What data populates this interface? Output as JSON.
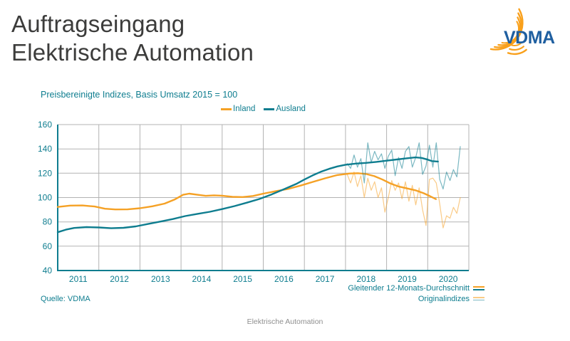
{
  "header": {
    "title_line1": "Auftragseingang",
    "title_line2": "Elektrische Automation",
    "logo_text": "VDMA"
  },
  "colors": {
    "teal": "#0E7D8F",
    "orange": "#F5A125",
    "grid": "#B3B3B3",
    "title_gray": "#3C3C3B",
    "footer_gray": "#8F8F8F",
    "logo_blue": "#1F5FA0",
    "logo_orange": "#F9A01B"
  },
  "chart": {
    "subtitle": "Preisbereinigte Indizes, Basis Umsatz 2015 = 100",
    "source": "Quelle: VDMA",
    "footer": "Elektrische Automation",
    "legend_top": [
      {
        "label": "Inland"
      },
      {
        "label": "Ausland"
      }
    ],
    "legend_bottom": [
      {
        "label": "Gleitender 12-Monats-Durchschnitt",
        "style": "thick"
      },
      {
        "label": "Originalindizes",
        "style": "thin"
      }
    ]
  },
  "chart_data": {
    "type": "line",
    "title": "Preisbereinigte Indizes, Basis Umsatz 2015 = 100",
    "xlabel": "",
    "ylabel": "",
    "x_range": [
      2011,
      2021
    ],
    "y_range": [
      40,
      160
    ],
    "y_ticks": [
      40,
      60,
      80,
      100,
      120,
      140,
      160
    ],
    "x_tick_labels": [
      "2011",
      "2012",
      "2013",
      "2014",
      "2015",
      "2016",
      "2017",
      "2018",
      "2019",
      "2020"
    ],
    "grid": true,
    "legend_position": "top",
    "series": [
      {
        "id": "inland-ma",
        "name": "Inland (gleitender 12-Monats-Durchschnitt)",
        "color": "#F5A125",
        "width": 2.4,
        "opacity": 1,
        "points": [
          [
            2011.0,
            92.3
          ],
          [
            2011.3,
            93.4
          ],
          [
            2011.6,
            93.5
          ],
          [
            2011.9,
            92.6
          ],
          [
            2012.15,
            90.8
          ],
          [
            2012.4,
            90.2
          ],
          [
            2012.7,
            90.3
          ],
          [
            2013.0,
            91.2
          ],
          [
            2013.3,
            92.8
          ],
          [
            2013.6,
            95.0
          ],
          [
            2013.85,
            98.5
          ],
          [
            2014.05,
            102.3
          ],
          [
            2014.2,
            103.2
          ],
          [
            2014.4,
            102.3
          ],
          [
            2014.6,
            101.4
          ],
          [
            2014.8,
            101.8
          ],
          [
            2015.0,
            101.5
          ],
          [
            2015.25,
            100.6
          ],
          [
            2015.5,
            100.4
          ],
          [
            2015.75,
            101.3
          ],
          [
            2016.0,
            103.2
          ],
          [
            2016.3,
            105.2
          ],
          [
            2016.6,
            107.0
          ],
          [
            2016.9,
            109.8
          ],
          [
            2017.2,
            112.8
          ],
          [
            2017.5,
            115.8
          ],
          [
            2017.8,
            118.5
          ],
          [
            2018.1,
            119.8
          ],
          [
            2018.3,
            120.0
          ],
          [
            2018.5,
            119.4
          ],
          [
            2018.7,
            117.6
          ],
          [
            2018.9,
            114.8
          ],
          [
            2019.1,
            111.5
          ],
          [
            2019.3,
            109.0
          ],
          [
            2019.5,
            107.5
          ],
          [
            2019.7,
            106.0
          ],
          [
            2019.9,
            103.6
          ],
          [
            2020.05,
            101.2
          ],
          [
            2020.2,
            98.7
          ]
        ]
      },
      {
        "id": "ausland-ma",
        "name": "Ausland (gleitender 12-Monats-Durchschnitt)",
        "color": "#0E7D8F",
        "width": 2.4,
        "opacity": 1,
        "points": [
          [
            2011.0,
            71.5
          ],
          [
            2011.2,
            73.6
          ],
          [
            2011.4,
            75.0
          ],
          [
            2011.7,
            75.7
          ],
          [
            2012.0,
            75.4
          ],
          [
            2012.3,
            74.8
          ],
          [
            2012.6,
            75.1
          ],
          [
            2012.9,
            76.3
          ],
          [
            2013.2,
            78.3
          ],
          [
            2013.5,
            80.3
          ],
          [
            2013.8,
            82.3
          ],
          [
            2014.1,
            84.8
          ],
          [
            2014.4,
            86.6
          ],
          [
            2014.7,
            88.3
          ],
          [
            2015.0,
            90.5
          ],
          [
            2015.3,
            93.0
          ],
          [
            2015.6,
            95.8
          ],
          [
            2015.9,
            98.8
          ],
          [
            2016.2,
            102.5
          ],
          [
            2016.5,
            106.8
          ],
          [
            2016.8,
            111.2
          ],
          [
            2017.0,
            114.8
          ],
          [
            2017.2,
            118.2
          ],
          [
            2017.4,
            121.2
          ],
          [
            2017.6,
            123.6
          ],
          [
            2017.8,
            125.6
          ],
          [
            2018.0,
            127.0
          ],
          [
            2018.25,
            127.9
          ],
          [
            2018.5,
            128.5
          ],
          [
            2018.75,
            129.3
          ],
          [
            2019.0,
            130.3
          ],
          [
            2019.25,
            131.3
          ],
          [
            2019.5,
            132.3
          ],
          [
            2019.7,
            133.0
          ],
          [
            2019.85,
            132.6
          ],
          [
            2020.0,
            131.2
          ],
          [
            2020.1,
            130.0
          ],
          [
            2020.25,
            129.6
          ]
        ]
      },
      {
        "id": "inland-original",
        "name": "Inland (Originalindizes, monatlich ab Jan 2018)",
        "color": "#F5A125",
        "width": 1.2,
        "opacity": 0.55,
        "start_x": 2018.0417,
        "step_x": 0.08333,
        "values": [
          119,
          112,
          121,
          109,
          118,
          100,
          116,
          106,
          113,
          100,
          108,
          88,
          100,
          114,
          106,
          112,
          99,
          113,
          97,
          110,
          94,
          108,
          90,
          77,
          115,
          116,
          112,
          95,
          75,
          85,
          83,
          92,
          87,
          100
        ]
      },
      {
        "id": "ausland-original",
        "name": "Ausland (Originalindizes, monatlich ab Jan 2018)",
        "color": "#0E7D8F",
        "width": 1.2,
        "opacity": 0.55,
        "start_x": 2018.0417,
        "step_x": 0.08333,
        "values": [
          128,
          124,
          135,
          125,
          132,
          112,
          145,
          129,
          138,
          131,
          136,
          124,
          134,
          139,
          118,
          133,
          124,
          138,
          142,
          125,
          133,
          145,
          119,
          126,
          143,
          125,
          145,
          115,
          107,
          121,
          114,
          123,
          117,
          142
        ]
      }
    ]
  }
}
